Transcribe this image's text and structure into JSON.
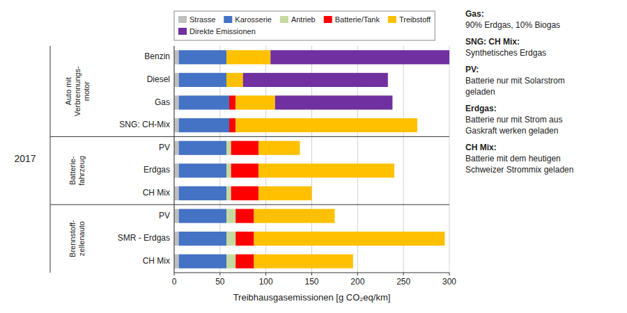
{
  "chart_data": {
    "type": "bar",
    "orientation": "horizontal",
    "stacked": true,
    "categories": [
      "Benzin",
      "Diesel",
      "Gas",
      "SNG: CH-Mix",
      "PV",
      "Erdgas",
      "CH Mix",
      "PV",
      "SMR - Erdgas",
      "CH Mix"
    ],
    "series": [
      {
        "name": "Strasse",
        "color": "#bfbfbf",
        "values": [
          5,
          5,
          5,
          5,
          5,
          5,
          5,
          5,
          5,
          5
        ]
      },
      {
        "name": "Karosserie",
        "color": "#4472c4",
        "values": [
          52,
          52,
          55,
          55,
          52,
          52,
          52,
          52,
          52,
          52
        ]
      },
      {
        "name": "Antrieb",
        "color": "#c6d9a0",
        "values": [
          0,
          0,
          0,
          0,
          5,
          5,
          5,
          10,
          10,
          10
        ]
      },
      {
        "name": "Batterie/Tank",
        "color": "#ff0000",
        "values": [
          0,
          0,
          7,
          7,
          30,
          30,
          30,
          20,
          20,
          20
        ]
      },
      {
        "name": "Treibstoff",
        "color": "#ffc000",
        "values": [
          48,
          18,
          43,
          198,
          45,
          148,
          58,
          88,
          208,
          108
        ]
      },
      {
        "name": "Direkte Emissionen",
        "color": "#7030a0",
        "values": [
          195,
          158,
          128,
          0,
          0,
          0,
          0,
          0,
          0,
          0
        ]
      }
    ],
    "xlabel": "Treibhausgasemissionen [g CO₂eq/km]",
    "xlim": [
      0,
      300
    ],
    "xticks": [
      0,
      50,
      100,
      150,
      200,
      250,
      300
    ],
    "grid": true,
    "legend": "top",
    "group_title": "2017",
    "groups": [
      {
        "label": "Auto mit\nVerbrennungs-\nmotor",
        "count": 4
      },
      {
        "label": "Batterie-\nfahrzeug",
        "count": 3
      },
      {
        "label": "Brennstoff-\nzellenauto",
        "count": 3
      }
    ],
    "annotations": [
      {
        "heading": "Gas:",
        "lines": [
          "90% Erdgas, 10% Biogas"
        ]
      },
      {
        "heading": "SNG: CH Mix:",
        "lines": [
          "Synthetisches Erdgas"
        ]
      },
      {
        "heading": "PV:",
        "lines": [
          "Batterie nur mit Solarstrom",
          "geladen"
        ]
      },
      {
        "heading": "Erdgas:",
        "lines": [
          "Batterie nur mit Strom aus",
          "Gaskraft werken geladen"
        ]
      },
      {
        "heading": "CH Mix:",
        "lines": [
          "Batterie mit dem heutigen",
          "Schweizer Strommix geladen"
        ]
      }
    ]
  }
}
